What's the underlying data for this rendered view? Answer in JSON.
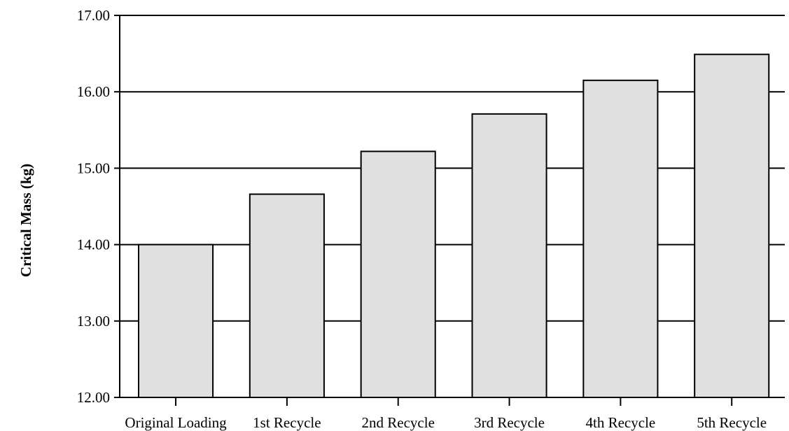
{
  "chart_data": {
    "type": "bar",
    "title": "",
    "xlabel": "",
    "ylabel": "Critical Mass (kg)",
    "categories": [
      "Original Loading",
      "1st Recycle",
      "2nd Recycle",
      "3rd Recycle",
      "4th Recycle",
      "5th Recycle"
    ],
    "values": [
      14.0,
      14.66,
      15.22,
      15.71,
      16.15,
      16.49
    ],
    "ylim": [
      12.0,
      17.0
    ],
    "yticks": [
      "12.00",
      "13.00",
      "14.00",
      "15.00",
      "16.00",
      "17.00"
    ],
    "grid": true,
    "legend": "none",
    "colors": {
      "bar_fill": "#e0e0e0",
      "bar_stroke": "#000000",
      "gridline": "#000000",
      "axis": "#000000"
    }
  }
}
